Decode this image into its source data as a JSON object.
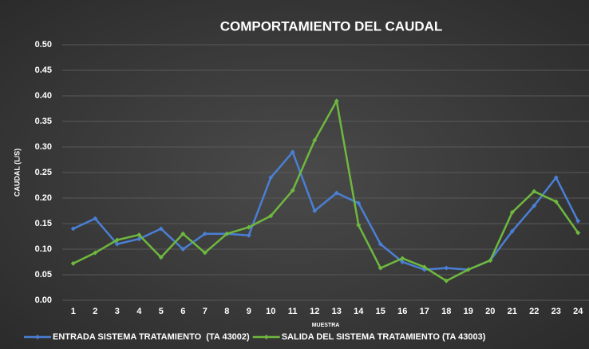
{
  "chart_data": {
    "type": "line",
    "title": "COMPORTAMIENTO DEL CAUDAL",
    "y_label": "CAUDAL (L/S)",
    "x_label": "MUESTRA",
    "categories": [
      "1",
      "2",
      "3",
      "4",
      "5",
      "6",
      "7",
      "8",
      "9",
      "10",
      "11",
      "12",
      "13",
      "14",
      "15",
      "16",
      "17",
      "18",
      "19",
      "20",
      "21",
      "22",
      "23",
      "24"
    ],
    "series": [
      {
        "name": "ENTRADA SISTEMA TRATAMIENTO  (TA 43002)",
        "color": "#4a7fd4",
        "values": [
          0.14,
          0.16,
          0.11,
          0.12,
          0.14,
          0.1,
          0.13,
          0.13,
          0.127,
          0.24,
          0.29,
          0.175,
          0.21,
          0.19,
          0.11,
          0.075,
          0.06,
          0.063,
          0.06,
          0.078,
          0.135,
          0.185,
          0.24,
          0.155
        ]
      },
      {
        "name": "SALIDA DEL SISTEMA TRATAMIENTO (TA 43003)",
        "color": "#6fb83f",
        "values": [
          0.072,
          0.093,
          0.118,
          0.128,
          0.084,
          0.13,
          0.093,
          0.13,
          0.143,
          0.165,
          0.215,
          0.313,
          0.39,
          0.147,
          0.063,
          0.082,
          0.065,
          0.038,
          0.06,
          0.078,
          0.172,
          0.213,
          0.193,
          0.132
        ]
      }
    ],
    "ylim": [
      0,
      0.5
    ],
    "yticks": [
      {
        "value": 0,
        "label": "0.00"
      },
      {
        "value": 0.05,
        "label": "0.05"
      },
      {
        "value": 0.1,
        "label": "0.10"
      },
      {
        "value": 0.15,
        "label": "0.15"
      },
      {
        "value": 0.2,
        "label": "0.20"
      },
      {
        "value": 0.25,
        "label": "0.25"
      },
      {
        "value": 0.3,
        "label": "0.30"
      },
      {
        "value": 0.35,
        "label": "0.35"
      },
      {
        "value": 0.4,
        "label": "0.40"
      },
      {
        "value": 0.45,
        "label": "0.45"
      },
      {
        "value": 0.5,
        "label": "0.50"
      }
    ],
    "grid": true,
    "legend": "bottom"
  }
}
